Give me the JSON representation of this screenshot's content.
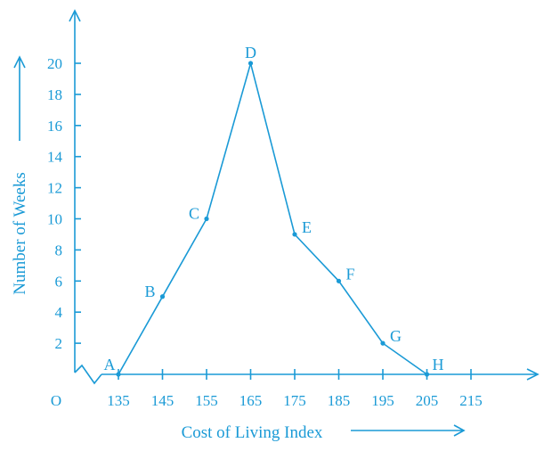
{
  "chart_data": {
    "type": "line",
    "title": "",
    "xlabel": "Cost of Living Index",
    "ylabel": "Number of Weeks",
    "origin_label": "O",
    "x_ticks": [
      135,
      145,
      155,
      165,
      175,
      185,
      195,
      205,
      215
    ],
    "y_ticks": [
      2,
      4,
      6,
      8,
      10,
      12,
      14,
      16,
      18,
      20
    ],
    "xlim": [
      125,
      225
    ],
    "ylim": [
      0,
      22
    ],
    "axis_break": "x",
    "grid": false,
    "legend": "none",
    "color": "#1a9ad6",
    "series": [
      {
        "points": [
          {
            "label": "A",
            "x": 135,
            "y": 0
          },
          {
            "label": "B",
            "x": 145,
            "y": 5
          },
          {
            "label": "C",
            "x": 155,
            "y": 10
          },
          {
            "label": "D",
            "x": 165,
            "y": 20
          },
          {
            "label": "E",
            "x": 175,
            "y": 9
          },
          {
            "label": "F",
            "x": 185,
            "y": 6
          },
          {
            "label": "G",
            "x": 195,
            "y": 2
          },
          {
            "label": "H",
            "x": 205,
            "y": 0
          }
        ]
      }
    ]
  }
}
